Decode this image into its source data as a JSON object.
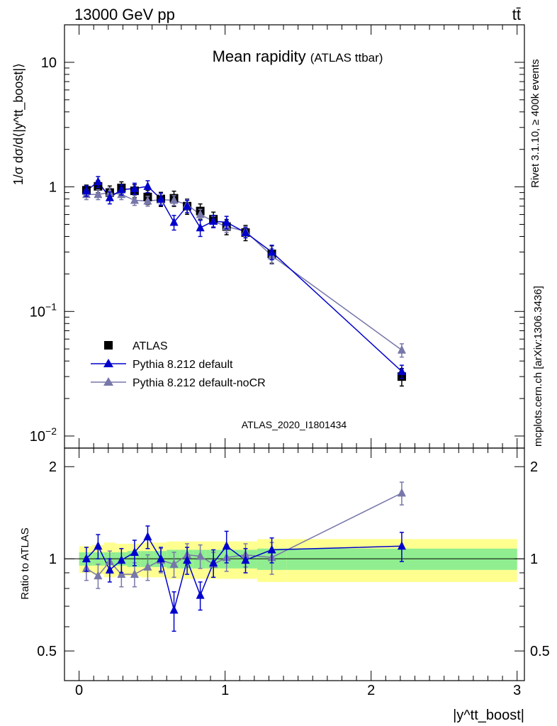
{
  "header": {
    "left": "13000 GeV pp",
    "right": "tt̄"
  },
  "side_labels": {
    "rivet": "Rivet 3.1.10, ≥ 400k events",
    "mcplots": "mcplots.cern.ch [arXiv:1306.3436]"
  },
  "colors": {
    "atlas": "#000000",
    "default": "#0000cc",
    "nocr": "#7777aa",
    "band_inner": "#90ee90",
    "band_outer": "#ffff90",
    "watermark": "#999999"
  },
  "chart_data": {
    "type": "scatter",
    "title": "Mean rapidity",
    "title_suffix": "(ATLAS ttbar)",
    "analysis_label": "ATLAS_2020_I1801434",
    "ylabel_main": "1/σ dσ/d⟨|y^tt_boost|⟩",
    "ylabel_ratio": "Ratio to ATLAS",
    "xlabel": "|y^tt_boost|",
    "xlim": [
      -0.1,
      3.05
    ],
    "ylim_main": [
      0.008,
      20
    ],
    "ylim_ratio": [
      0.4,
      2.3
    ],
    "log_y_main": true,
    "log_y_ratio": true,
    "x_ticks": [
      "0",
      "1",
      "2",
      "3"
    ],
    "y_ticks_main": [
      "10^{-2}",
      "10^{-1}",
      "1",
      "10"
    ],
    "y_ticks_ratio": [
      "0.5",
      "1",
      "2"
    ],
    "legend": {
      "placement": "lower-left",
      "entries": [
        "ATLAS",
        "Pythia 8.212 default",
        "Pythia 8.212 default-noCR"
      ]
    },
    "x": [
      0.05,
      0.13,
      0.21,
      0.29,
      0.38,
      0.47,
      0.56,
      0.65,
      0.74,
      0.83,
      0.92,
      1.01,
      1.14,
      1.32,
      2.21
    ],
    "x_edges": [
      0,
      0.09,
      0.17,
      0.25,
      0.33,
      0.42,
      0.51,
      0.6,
      0.69,
      0.78,
      0.87,
      0.96,
      1.06,
      1.22,
      1.42,
      3.0
    ],
    "series": [
      {
        "name": "ATLAS",
        "marker": "square",
        "values": [
          0.94,
          1.01,
          0.9,
          0.98,
          0.93,
          0.83,
          0.8,
          0.81,
          0.7,
          0.64,
          0.55,
          0.48,
          0.43,
          0.29,
          0.03
        ],
        "band_inner": [
          0.05,
          0.05,
          0.05,
          0.05,
          0.06,
          0.06,
          0.06,
          0.07,
          0.07,
          0.07,
          0.07,
          0.07,
          0.07,
          0.08,
          0.08
        ],
        "band_outer": [
          0.1,
          0.11,
          0.13,
          0.12,
          0.12,
          0.13,
          0.13,
          0.14,
          0.14,
          0.14,
          0.14,
          0.14,
          0.14,
          0.16,
          0.16
        ]
      },
      {
        "name": "Pythia 8.212 default",
        "marker": "triangle",
        "values": [
          0.93,
          1.1,
          0.82,
          0.95,
          0.97,
          1.01,
          0.8,
          0.52,
          0.7,
          0.47,
          0.53,
          0.52,
          0.43,
          0.3,
          0.033
        ],
        "errors": [
          0.09,
          0.11,
          0.09,
          0.09,
          0.1,
          0.11,
          0.09,
          0.07,
          0.08,
          0.07,
          0.06,
          0.06,
          0.04,
          0.04,
          0.004
        ],
        "ratio": [
          1.0,
          1.1,
          0.92,
          0.99,
          1.05,
          1.18,
          1.0,
          0.68,
          0.99,
          0.76,
          0.97,
          1.1,
          0.99,
          1.07,
          1.1
        ],
        "ratio_errors": [
          0.09,
          0.1,
          0.08,
          0.09,
          0.1,
          0.1,
          0.09,
          0.1,
          0.1,
          0.08,
          0.1,
          0.13,
          0.09,
          0.1,
          0.12
        ]
      },
      {
        "name": "Pythia 8.212 default-noCR",
        "marker": "triangle",
        "values": [
          0.87,
          0.87,
          0.9,
          0.87,
          0.78,
          0.77,
          0.79,
          0.78,
          0.72,
          0.6,
          0.53,
          0.48,
          0.44,
          0.28,
          0.049
        ],
        "errors": [
          0.08,
          0.08,
          0.08,
          0.08,
          0.07,
          0.07,
          0.07,
          0.07,
          0.07,
          0.06,
          0.05,
          0.05,
          0.04,
          0.04,
          0.006
        ],
        "ratio": [
          0.93,
          0.88,
          0.98,
          0.89,
          0.89,
          0.94,
          0.99,
          0.96,
          1.03,
          1.02,
          0.96,
          1.01,
          1.03,
          1.01,
          1.64
        ],
        "ratio_errors": [
          0.08,
          0.08,
          0.08,
          0.08,
          0.08,
          0.09,
          0.09,
          0.09,
          0.09,
          0.09,
          0.09,
          0.1,
          0.09,
          0.12,
          0.14
        ]
      }
    ]
  }
}
